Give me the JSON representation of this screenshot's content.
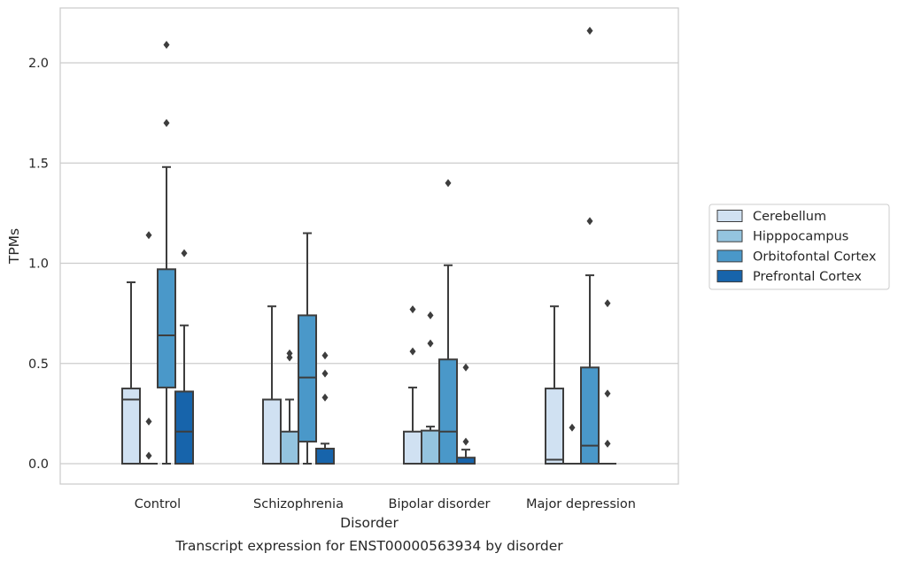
{
  "chart_data": {
    "type": "box",
    "title": "",
    "caption": "Transcript expression for ENST00000563934 by disorder",
    "xlabel": "Disorder",
    "ylabel": "TPMs",
    "ylim": [
      -0.1,
      2.28
    ],
    "yticks": [
      0.0,
      0.5,
      1.0,
      1.5,
      2.0
    ],
    "ytick_labels": [
      "0.0",
      "0.5",
      "1.0",
      "1.5",
      "2.0"
    ],
    "grid": "horizontal",
    "legend_placement": "right",
    "categories": [
      "Control",
      "Schizophrenia",
      "Bipolar disorder",
      "Major depression"
    ],
    "series": [
      {
        "name": "Cerebellum",
        "color": "#d0e1f2",
        "boxes": [
          {
            "low": 0.0,
            "q1": 0.0,
            "median": 0.32,
            "q3": 0.375,
            "high": 0.905,
            "outliers": []
          },
          {
            "low": 0.0,
            "q1": 0.0,
            "median": 0.0,
            "q3": 0.32,
            "high": 0.785,
            "outliers": []
          },
          {
            "low": 0.0,
            "q1": 0.0,
            "median": 0.0,
            "q3": 0.16,
            "high": 0.38,
            "outliers": [
              0.56,
              0.77
            ]
          },
          {
            "low": 0.0,
            "q1": 0.0,
            "median": 0.02,
            "q3": 0.375,
            "high": 0.785,
            "outliers": []
          }
        ]
      },
      {
        "name": "Hipppocampus",
        "color": "#94c4df",
        "boxes": [
          {
            "low": 0.0,
            "q1": 0.0,
            "median": 0.0,
            "q3": 0.0,
            "high": 0.0,
            "outliers": [
              0.04,
              0.21,
              1.14
            ]
          },
          {
            "low": 0.0,
            "q1": 0.0,
            "median": 0.0,
            "q3": 0.16,
            "high": 0.32,
            "outliers": [
              0.53,
              0.55
            ]
          },
          {
            "low": 0.0,
            "q1": 0.0,
            "median": 0.0,
            "q3": 0.165,
            "high": 0.185,
            "outliers": [
              0.6,
              0.74
            ]
          },
          {
            "low": 0.0,
            "q1": 0.0,
            "median": 0.0,
            "q3": 0.0,
            "high": 0.0,
            "outliers": [
              0.18
            ]
          }
        ]
      },
      {
        "name": "Orbitofontal Cortex",
        "color": "#4a98c9",
        "boxes": [
          {
            "low": 0.0,
            "q1": 0.38,
            "median": 0.64,
            "q3": 0.97,
            "high": 1.48,
            "outliers": [
              1.7,
              2.09
            ]
          },
          {
            "low": 0.0,
            "q1": 0.11,
            "median": 0.43,
            "q3": 0.74,
            "high": 1.15,
            "outliers": []
          },
          {
            "low": 0.0,
            "q1": 0.0,
            "median": 0.16,
            "q3": 0.52,
            "high": 0.99,
            "outliers": [
              1.4
            ]
          },
          {
            "low": 0.0,
            "q1": 0.0,
            "median": 0.09,
            "q3": 0.48,
            "high": 0.94,
            "outliers": [
              1.21,
              2.16
            ]
          }
        ]
      },
      {
        "name": "Prefrontal Cortex",
        "color": "#1764ab",
        "boxes": [
          {
            "low": 0.0,
            "q1": 0.0,
            "median": 0.16,
            "q3": 0.36,
            "high": 0.69,
            "outliers": [
              1.05
            ]
          },
          {
            "low": 0.0,
            "q1": 0.0,
            "median": 0.0,
            "q3": 0.075,
            "high": 0.1,
            "outliers": [
              0.33,
              0.45,
              0.54
            ]
          },
          {
            "low": 0.0,
            "q1": 0.0,
            "median": 0.0,
            "q3": 0.03,
            "high": 0.07,
            "outliers": [
              0.11,
              0.48
            ]
          },
          {
            "low": 0.0,
            "q1": 0.0,
            "median": 0.0,
            "q3": 0.0,
            "high": 0.0,
            "outliers": [
              0.1,
              0.35,
              0.8
            ]
          }
        ]
      }
    ]
  }
}
